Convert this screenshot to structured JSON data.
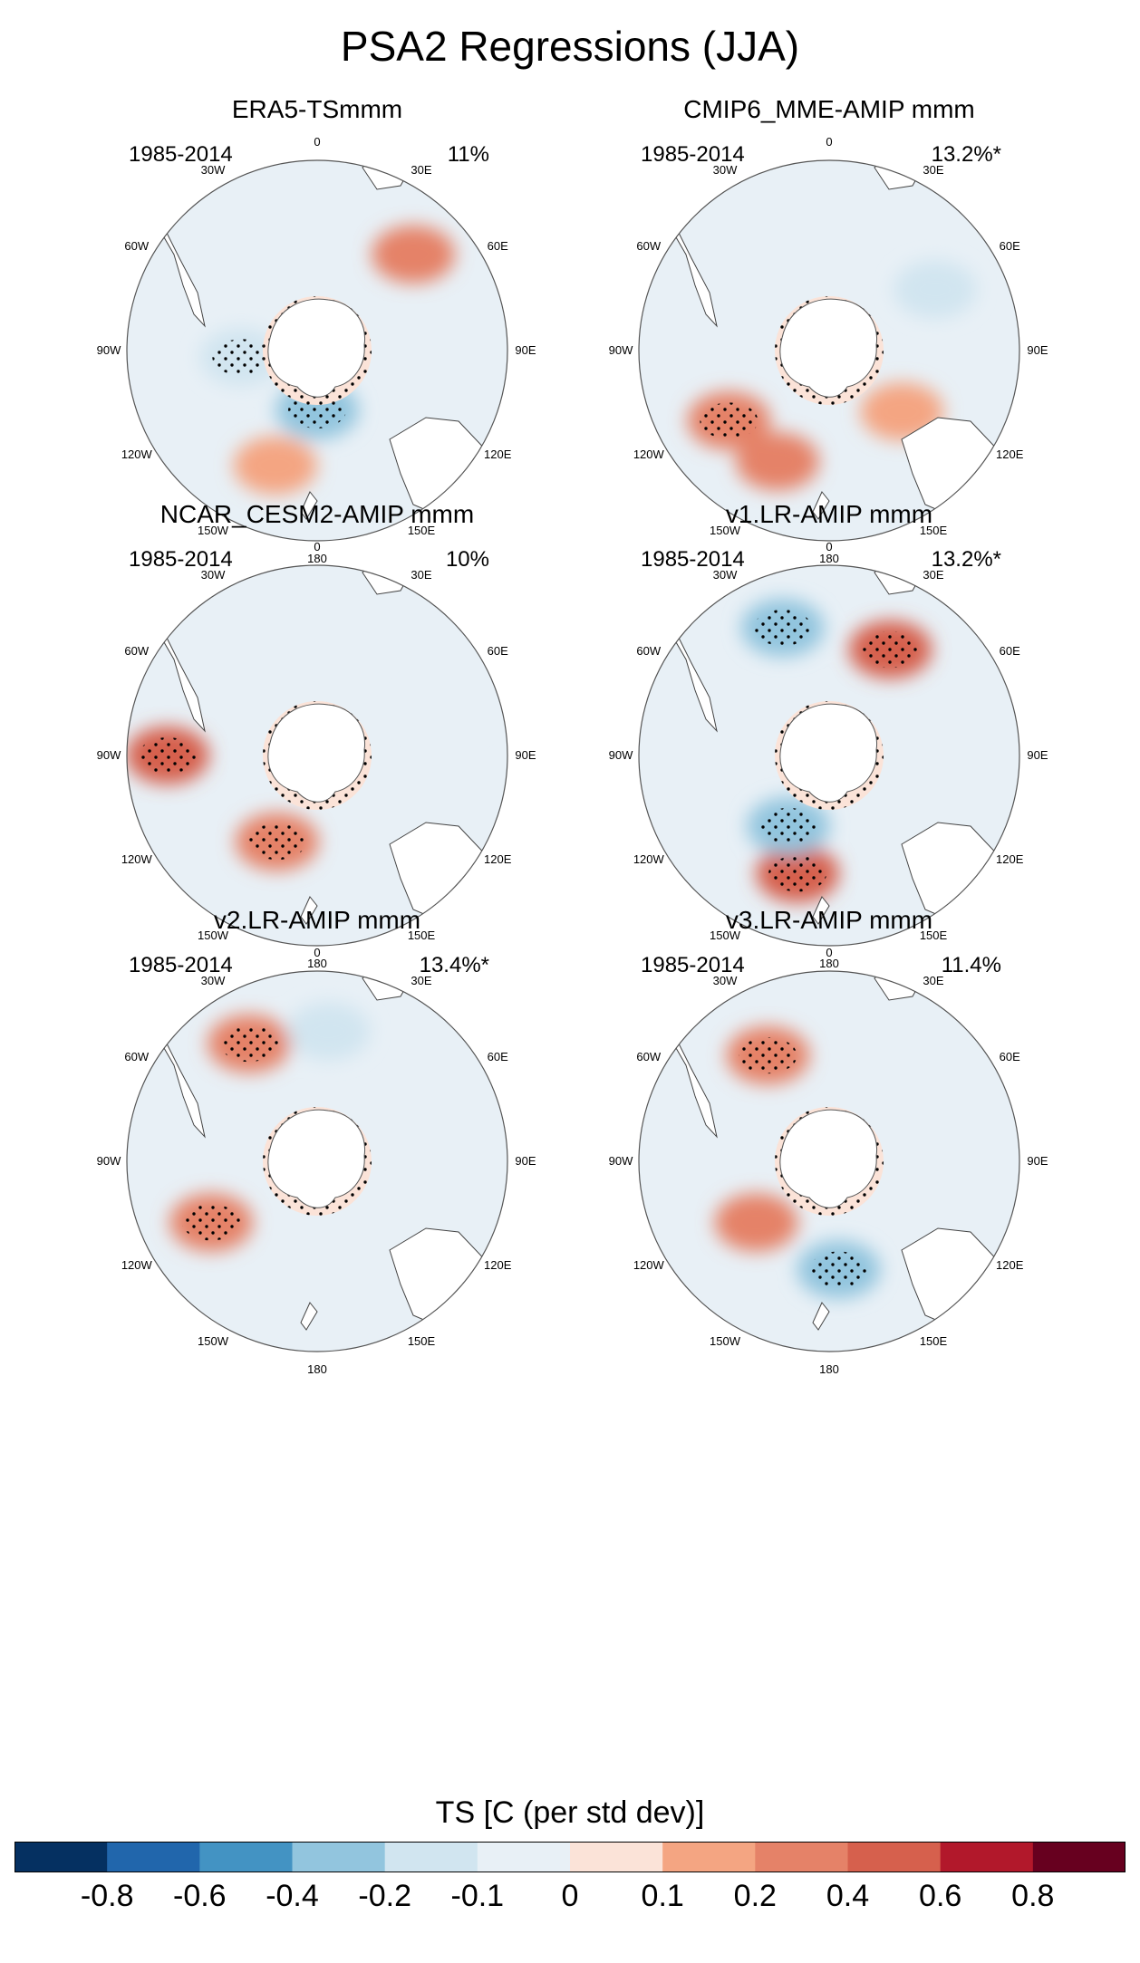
{
  "title": "PSA2 Regressions (JJA)",
  "chart_data": {
    "type": "polar-stereographic contour map panels",
    "variable": "TS",
    "units": "C (per std dev)",
    "colorbar": {
      "label": "TS [C (per std dev)]",
      "levels": [
        -0.8,
        -0.6,
        -0.4,
        -0.2,
        -0.1,
        0,
        0.1,
        0.2,
        0.4,
        0.6,
        0.8
      ],
      "tick_labels": [
        "-0.8",
        "-0.6",
        "-0.4",
        "-0.2",
        "-0.1",
        "0",
        "0.1",
        "0.2",
        "0.4",
        "0.6",
        "0.8"
      ],
      "colors": [
        "#053061",
        "#2166ac",
        "#4393c3",
        "#92c5de",
        "#d1e5f0",
        "#e8f0f6",
        "#fbe3d8",
        "#f4a582",
        "#e58268",
        "#d6604d",
        "#b2182b",
        "#67001f"
      ]
    },
    "longitude_labels": [
      "0",
      "30E",
      "60E",
      "90E",
      "120E",
      "150E",
      "180",
      "150W",
      "120W",
      "90W",
      "60W",
      "30W"
    ],
    "panels": [
      {
        "title": "ERA5-TSmmm",
        "period": "1985-2014",
        "variance_explained": "11%",
        "features": [
          {
            "lon": 180,
            "lat": -68,
            "value": -0.4,
            "stippled": true
          },
          {
            "lon": 200,
            "lat": -45,
            "value": 0.1
          },
          {
            "lon": 45,
            "lat": -40,
            "value": 0.2
          },
          {
            "lon": 265,
            "lat": -62,
            "value": -0.2,
            "stippled": true
          }
        ]
      },
      {
        "title": "CMIP6_MME-AMIP  mmm",
        "period": "1985-2014",
        "variance_explained": "13.2%*",
        "features": [
          {
            "lon": 235,
            "lat": -45,
            "value": 0.3,
            "stippled": true
          },
          {
            "lon": 205,
            "lat": -45,
            "value": 0.2
          },
          {
            "lon": 60,
            "lat": -45,
            "value": -0.2
          },
          {
            "lon": 130,
            "lat": -55,
            "value": 0.15
          }
        ]
      },
      {
        "title": "NCAR_CESM2-AMIP  mmm",
        "period": "1985-2014",
        "variance_explained": "10%",
        "features": [
          {
            "lon": 270,
            "lat": -35,
            "value": 0.45,
            "stippled": true
          },
          {
            "lon": 205,
            "lat": -55,
            "value": 0.3,
            "stippled": true
          },
          {
            "lon": 70,
            "lat": -40,
            "value": -0.1
          }
        ]
      },
      {
        "title": "v1.LR-AMIP  mmm",
        "period": "1985-2014",
        "variance_explained": "13.2%*",
        "features": [
          {
            "lon": 195,
            "lat": -45,
            "value": 0.45,
            "stippled": true
          },
          {
            "lon": 210,
            "lat": -60,
            "value": -0.4,
            "stippled": true
          },
          {
            "lon": 340,
            "lat": -40,
            "value": -0.35,
            "stippled": true
          },
          {
            "lon": 30,
            "lat": -45,
            "value": 0.4,
            "stippled": true
          }
        ]
      },
      {
        "title": "v2.LR-AMIP  mmm",
        "period": "1985-2014",
        "variance_explained": "13.4%*",
        "features": [
          {
            "lon": 330,
            "lat": -40,
            "value": 0.35,
            "stippled": true
          },
          {
            "lon": 240,
            "lat": -45,
            "value": 0.35,
            "stippled": true
          },
          {
            "lon": 5,
            "lat": -42,
            "value": -0.2
          }
        ]
      },
      {
        "title": "v3.LR-AMIP  mmm",
        "period": "1985-2014",
        "variance_explained": "11.4%",
        "features": [
          {
            "lon": 175,
            "lat": -50,
            "value": -0.35,
            "stippled": true
          },
          {
            "lon": 330,
            "lat": -45,
            "value": 0.3,
            "stippled": true
          },
          {
            "lon": 230,
            "lat": -55,
            "value": 0.2
          }
        ]
      }
    ]
  }
}
